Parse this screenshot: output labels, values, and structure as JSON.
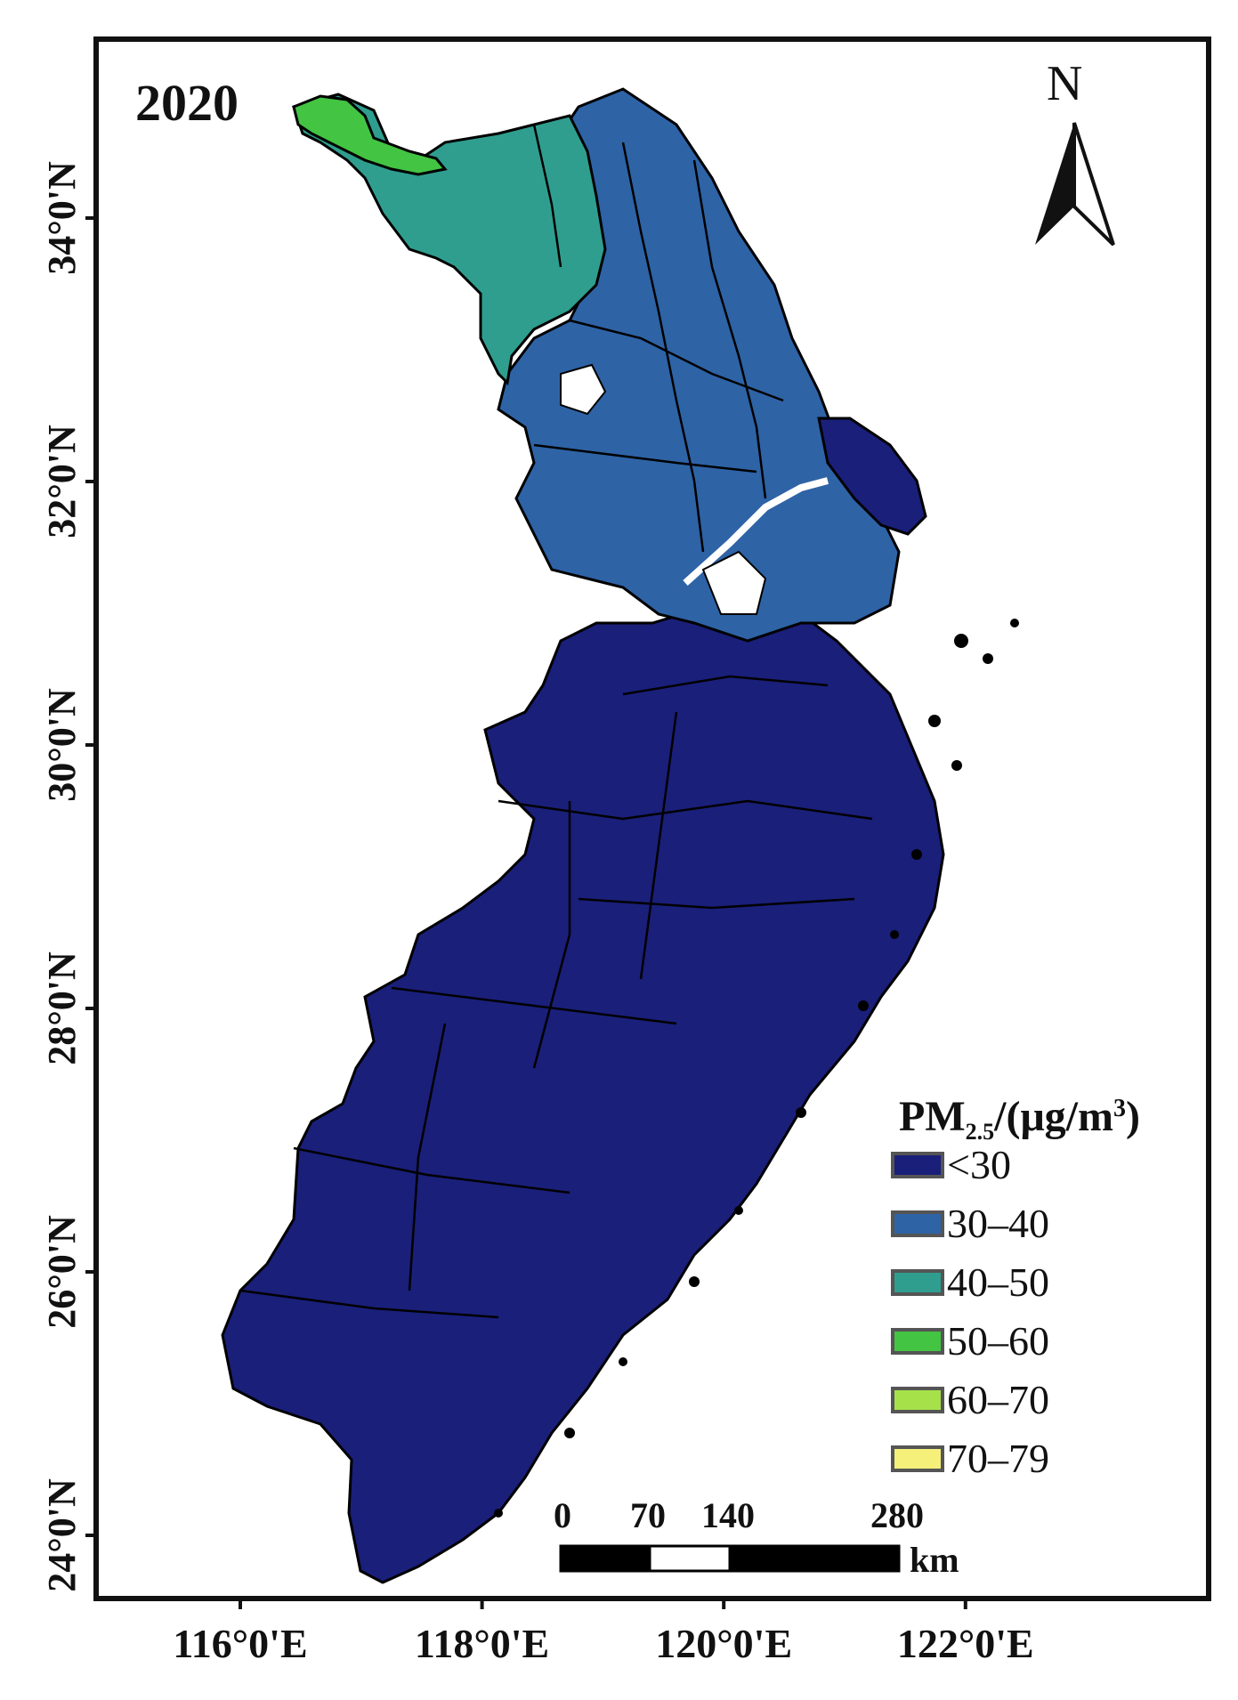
{
  "map": {
    "year": "2020",
    "north_label": "N",
    "lat_ticks": [
      {
        "label": "34°0'N",
        "lat": 34
      },
      {
        "label": "32°0'N",
        "lat": 32
      },
      {
        "label": "30°0'N",
        "lat": 30
      },
      {
        "label": "28°0'N",
        "lat": 28
      },
      {
        "label": "26°0'N",
        "lat": 26
      },
      {
        "label": "24°0'N",
        "lat": 24
      }
    ],
    "lon_ticks": [
      {
        "label": "116°0'E",
        "lon": 116
      },
      {
        "label": "118°0'E",
        "lon": 118
      },
      {
        "label": "120°0'E",
        "lon": 120
      },
      {
        "label": "122°0'E",
        "lon": 122
      }
    ],
    "scale_bar": {
      "ticks": [
        "0",
        "70",
        "140",
        "280"
      ],
      "unit": "km"
    },
    "legend": {
      "title_main": "PM",
      "title_sub": "2.5",
      "title_rest": "/(μg/m",
      "title_sup": "3",
      "title_end": ")",
      "items": [
        {
          "label": "<30",
          "color": "#1a1f7a"
        },
        {
          "label": "30–40",
          "color": "#2e63a6"
        },
        {
          "label": "40–50",
          "color": "#2f9e8f"
        },
        {
          "label": "50–60",
          "color": "#43c443"
        },
        {
          "label": "60–70",
          "color": "#a6e14a"
        },
        {
          "label": "70–79",
          "color": "#f4f07a"
        }
      ]
    },
    "colors": {
      "frame": "#111111",
      "boundary": "#000000",
      "water": "#ffffff"
    }
  }
}
